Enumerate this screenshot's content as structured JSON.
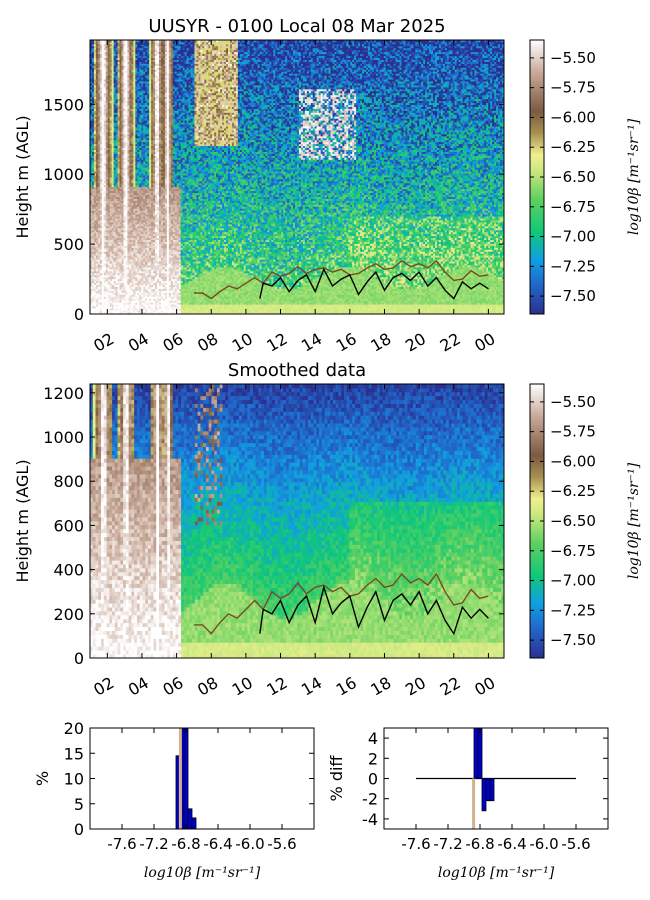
{
  "chart_data": [
    {
      "type": "heatmap",
      "title": "UUSYR - 0100 Local 08 Mar 2025",
      "xlabel": "",
      "ylabel": "Height m (AGL)",
      "x_tick_labels": [
        "02",
        "04",
        "06",
        "08",
        "10",
        "12",
        "14",
        "16",
        "18",
        "20",
        "22",
        "00"
      ],
      "y_ticks": [
        0,
        500,
        1000,
        1500
      ],
      "ylim": [
        0,
        1960
      ],
      "colorbar": {
        "label": "log10β [m⁻¹sr⁻¹]",
        "ticks": [
          -5.5,
          -5.75,
          -6.0,
          -6.25,
          -6.5,
          -6.75,
          -7.0,
          -7.25,
          -7.5
        ],
        "tick_labels": [
          "−5.50",
          "−5.75",
          "−6.00",
          "−6.25",
          "−6.50",
          "−6.75",
          "−7.00",
          "−7.25",
          "−7.50"
        ],
        "range": [
          -7.65,
          -5.35
        ]
      },
      "series": [
        {
          "color": "#7a4a1e",
          "x": [
            7.0,
            7.5,
            8.0,
            8.5,
            9.0,
            9.5,
            10.0,
            10.5,
            11.0,
            11.5,
            12.0,
            12.5,
            13.0,
            13.5,
            14.0,
            14.5,
            15.0,
            15.5,
            16.0,
            16.5,
            17.0,
            17.5,
            18.0,
            18.5,
            19.0,
            19.5,
            20.0,
            20.5,
            21.0,
            21.5,
            22.0,
            22.5,
            23.0,
            23.5,
            24.0
          ],
          "y": [
            150,
            150,
            110,
            160,
            200,
            180,
            220,
            260,
            220,
            300,
            270,
            290,
            340,
            290,
            320,
            330,
            300,
            320,
            280,
            290,
            330,
            360,
            320,
            330,
            380,
            340,
            360,
            330,
            380,
            300,
            240,
            250,
            310,
            270,
            280
          ]
        },
        {
          "color": "#000000",
          "x": [
            10.8,
            11.0,
            11.5,
            12.0,
            12.5,
            13.0,
            13.5,
            14.0,
            14.5,
            15.0,
            15.5,
            16.0,
            16.5,
            17.0,
            17.5,
            18.0,
            18.5,
            19.0,
            19.5,
            20.0,
            20.5,
            21.0,
            21.5,
            22.0,
            22.5,
            23.0,
            23.5,
            24.0
          ],
          "y": [
            110,
            220,
            200,
            260,
            160,
            240,
            280,
            160,
            320,
            200,
            250,
            280,
            140,
            230,
            300,
            170,
            260,
            290,
            240,
            300,
            200,
            260,
            170,
            110,
            230,
            180,
            220,
            180
          ]
        }
      ]
    },
    {
      "type": "heatmap",
      "title": "Smoothed data",
      "xlabel": "",
      "ylabel": "Height m (AGL)",
      "x_tick_labels": [
        "02",
        "04",
        "06",
        "08",
        "10",
        "12",
        "14",
        "16",
        "18",
        "20",
        "22",
        "00"
      ],
      "y_ticks": [
        0,
        200,
        400,
        600,
        800,
        1000,
        1200
      ],
      "ylim": [
        0,
        1240
      ],
      "colorbar": {
        "label": "log10β [m⁻¹sr⁻¹]",
        "ticks": [
          -5.5,
          -5.75,
          -6.0,
          -6.25,
          -6.5,
          -6.75,
          -7.0,
          -7.25,
          -7.5
        ],
        "tick_labels": [
          "−5.50",
          "−5.75",
          "−6.00",
          "−6.25",
          "−6.50",
          "−6.75",
          "−7.00",
          "−7.25",
          "−7.50"
        ],
        "range": [
          -7.65,
          -5.35
        ]
      },
      "series": [
        {
          "color": "#7a4a1e",
          "x": [
            7.0,
            7.5,
            8.0,
            8.5,
            9.0,
            9.5,
            10.0,
            10.5,
            11.0,
            11.5,
            12.0,
            12.5,
            13.0,
            13.5,
            14.0,
            14.5,
            15.0,
            15.5,
            16.0,
            16.5,
            17.0,
            17.5,
            18.0,
            18.5,
            19.0,
            19.5,
            20.0,
            20.5,
            21.0,
            21.5,
            22.0,
            22.5,
            23.0,
            23.5,
            24.0
          ],
          "y": [
            150,
            150,
            110,
            160,
            200,
            180,
            220,
            260,
            220,
            300,
            270,
            290,
            340,
            290,
            320,
            330,
            300,
            320,
            280,
            290,
            330,
            360,
            320,
            330,
            380,
            340,
            360,
            330,
            380,
            300,
            240,
            250,
            310,
            270,
            280
          ]
        },
        {
          "color": "#000000",
          "x": [
            10.8,
            11.0,
            11.5,
            12.0,
            12.5,
            13.0,
            13.5,
            14.0,
            14.5,
            15.0,
            15.5,
            16.0,
            16.5,
            17.0,
            17.5,
            18.0,
            18.5,
            19.0,
            19.5,
            20.0,
            20.5,
            21.0,
            21.5,
            22.0,
            22.5,
            23.0,
            23.5,
            24.0
          ],
          "y": [
            110,
            220,
            200,
            260,
            160,
            240,
            280,
            160,
            320,
            200,
            250,
            280,
            140,
            230,
            300,
            170,
            260,
            290,
            240,
            300,
            200,
            260,
            170,
            110,
            230,
            180,
            220,
            180
          ]
        }
      ]
    },
    {
      "type": "bar",
      "title": "",
      "xlabel": "log10β [m⁻¹sr⁻¹]",
      "ylabel": "%",
      "x_tick_labels": [
        "-7.6",
        "-7.2",
        "-6.8",
        "-6.4",
        "-6.0",
        "-5.6"
      ],
      "x_ticks": [
        -7.6,
        -7.2,
        -6.8,
        -6.4,
        -6.0,
        -5.6
      ],
      "xlim": [
        -8.0,
        -5.2
      ],
      "ylim": [
        0,
        20
      ],
      "y_ticks": [
        0,
        5,
        10,
        15,
        20
      ],
      "series": [
        {
          "color": "#0000cc",
          "x": [
            -6.9,
            -6.85,
            -6.8,
            -6.75,
            -6.7
          ],
          "values": [
            14.5,
            20,
            20,
            4,
            2.2
          ]
        },
        {
          "color": "#d2b48c",
          "x": [
            -6.87
          ],
          "values": [
            20
          ]
        }
      ]
    },
    {
      "type": "bar",
      "title": "",
      "xlabel": "log10β [m⁻¹sr⁻¹]",
      "ylabel": "% diff",
      "x_tick_labels": [
        "-7.6",
        "-7.2",
        "-6.8",
        "-6.4",
        "-6.0",
        "-5.6"
      ],
      "x_ticks": [
        -7.6,
        -7.2,
        -6.8,
        -6.4,
        -6.0,
        -5.6
      ],
      "xlim": [
        -8.0,
        -5.2
      ],
      "ylim": [
        -5,
        5
      ],
      "y_ticks": [
        -4,
        -2,
        0,
        2,
        4
      ],
      "series": [
        {
          "color": "#0000cc",
          "x": [
            -6.85,
            -6.8,
            -6.75,
            -6.7,
            -6.65
          ],
          "values": [
            5,
            5,
            -3.2,
            -2.2,
            -2.2
          ]
        },
        {
          "color": "#d2b48c",
          "x": [
            -6.88
          ],
          "values": [
            -5
          ]
        }
      ],
      "reference_line": {
        "y": 0,
        "from": -7.6,
        "to": -5.6
      }
    }
  ]
}
